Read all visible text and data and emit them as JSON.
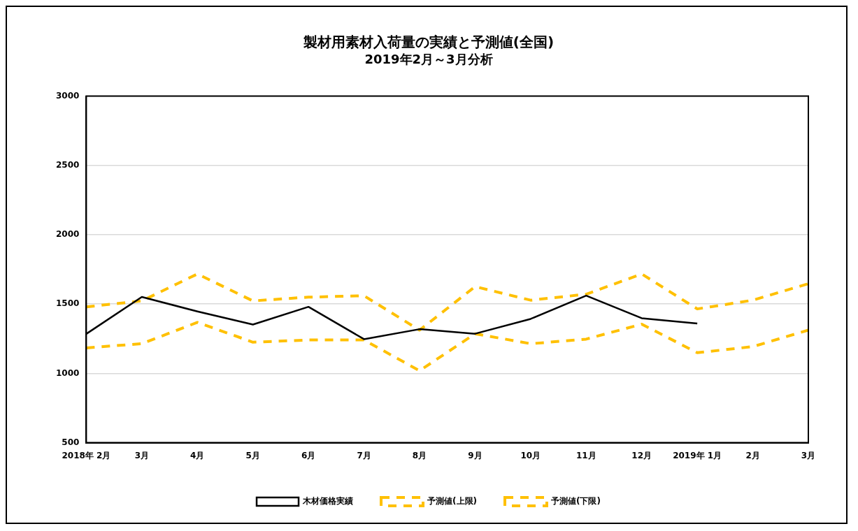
{
  "chart_data": {
    "type": "line",
    "title": "製材用素材入荷量の実績と予測値(全国)",
    "subtitle": "2019年2月～3月分析",
    "categories": [
      "2018年 2月",
      "3月",
      "4月",
      "5月",
      "6月",
      "7月",
      "8月",
      "9月",
      "10月",
      "11月",
      "12月",
      "2019年 1月",
      "2月",
      "3月"
    ],
    "series": [
      {
        "name": "木材価格実績",
        "color": "#000000",
        "line_style": "solid",
        "values": [
          1285,
          1551,
          1447,
          1352,
          1480,
          1247,
          1319,
          1286,
          1393,
          1561,
          1398,
          1360,
          null,
          null
        ]
      },
      {
        "name": "予測値(上限)",
        "color": "#ffc000",
        "line_style": "dashed",
        "values": [
          1480,
          1523,
          1717,
          1523,
          1550,
          1560,
          1312,
          1626,
          1528,
          1571,
          1717,
          1465,
          1528,
          1647
        ]
      },
      {
        "name": "予測値(下限)",
        "color": "#ffc000",
        "line_style": "dashed",
        "values": [
          1184,
          1214,
          1368,
          1225,
          1241,
          1241,
          1019,
          1286,
          1214,
          1247,
          1355,
          1149,
          1193,
          1312
        ]
      }
    ],
    "ylim": [
      500,
      3000
    ],
    "yticks": [
      500,
      1000,
      1500,
      2000,
      2500,
      3000
    ],
    "grid": "y",
    "legend": "bottom",
    "marker": "none"
  }
}
